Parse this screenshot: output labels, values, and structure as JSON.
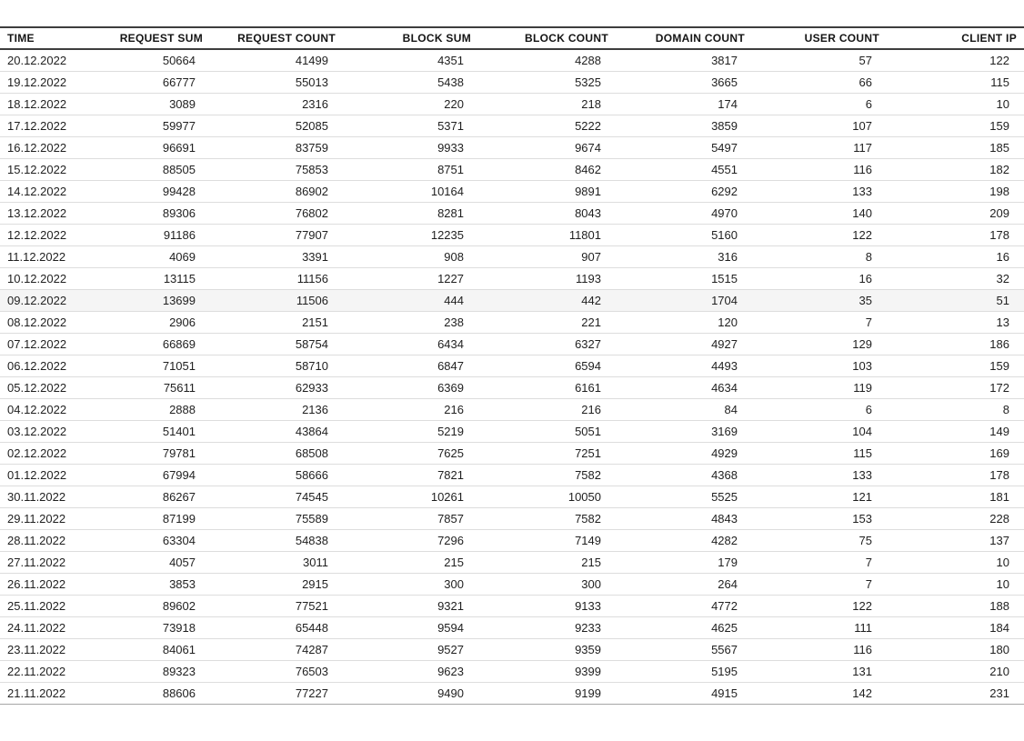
{
  "table": {
    "columns": [
      {
        "id": "time",
        "label": "TIME"
      },
      {
        "id": "request-sum",
        "label": "REQUEST SUM"
      },
      {
        "id": "request-count",
        "label": "REQUEST COUNT"
      },
      {
        "id": "block-sum",
        "label": "BLOCK SUM"
      },
      {
        "id": "block-count",
        "label": "BLOCK COUNT"
      },
      {
        "id": "domain-count",
        "label": "DOMAIN COUNT"
      },
      {
        "id": "user-count",
        "label": "USER COUNT"
      },
      {
        "id": "client-ip",
        "label": "CLIENT IP"
      }
    ],
    "rows": [
      [
        "20.12.2022",
        "50664",
        "41499",
        "4351",
        "4288",
        "3817",
        "57",
        "122"
      ],
      [
        "19.12.2022",
        "66777",
        "55013",
        "5438",
        "5325",
        "3665",
        "66",
        "115"
      ],
      [
        "18.12.2022",
        "3089",
        "2316",
        "220",
        "218",
        "174",
        "6",
        "10"
      ],
      [
        "17.12.2022",
        "59977",
        "52085",
        "5371",
        "5222",
        "3859",
        "107",
        "159"
      ],
      [
        "16.12.2022",
        "96691",
        "83759",
        "9933",
        "9674",
        "5497",
        "117",
        "185"
      ],
      [
        "15.12.2022",
        "88505",
        "75853",
        "8751",
        "8462",
        "4551",
        "116",
        "182"
      ],
      [
        "14.12.2022",
        "99428",
        "86902",
        "10164",
        "9891",
        "6292",
        "133",
        "198"
      ],
      [
        "13.12.2022",
        "89306",
        "76802",
        "8281",
        "8043",
        "4970",
        "140",
        "209"
      ],
      [
        "12.12.2022",
        "91186",
        "77907",
        "12235",
        "11801",
        "5160",
        "122",
        "178"
      ],
      [
        "11.12.2022",
        "4069",
        "3391",
        "908",
        "907",
        "316",
        "8",
        "16"
      ],
      [
        "10.12.2022",
        "13115",
        "11156",
        "1227",
        "1193",
        "1515",
        "16",
        "32"
      ],
      [
        "09.12.2022",
        "13699",
        "11506",
        "444",
        "442",
        "1704",
        "35",
        "51"
      ],
      [
        "08.12.2022",
        "2906",
        "2151",
        "238",
        "221",
        "120",
        "7",
        "13"
      ],
      [
        "07.12.2022",
        "66869",
        "58754",
        "6434",
        "6327",
        "4927",
        "129",
        "186"
      ],
      [
        "06.12.2022",
        "71051",
        "58710",
        "6847",
        "6594",
        "4493",
        "103",
        "159"
      ],
      [
        "05.12.2022",
        "75611",
        "62933",
        "6369",
        "6161",
        "4634",
        "119",
        "172"
      ],
      [
        "04.12.2022",
        "2888",
        "2136",
        "216",
        "216",
        "84",
        "6",
        "8"
      ],
      [
        "03.12.2022",
        "51401",
        "43864",
        "5219",
        "5051",
        "3169",
        "104",
        "149"
      ],
      [
        "02.12.2022",
        "79781",
        "68508",
        "7625",
        "7251",
        "4929",
        "115",
        "169"
      ],
      [
        "01.12.2022",
        "67994",
        "58666",
        "7821",
        "7582",
        "4368",
        "133",
        "178"
      ],
      [
        "30.11.2022",
        "86267",
        "74545",
        "10261",
        "10050",
        "5525",
        "121",
        "181"
      ],
      [
        "29.11.2022",
        "87199",
        "75589",
        "7857",
        "7582",
        "4843",
        "153",
        "228"
      ],
      [
        "28.11.2022",
        "63304",
        "54838",
        "7296",
        "7149",
        "4282",
        "75",
        "137"
      ],
      [
        "27.11.2022",
        "4057",
        "3011",
        "215",
        "215",
        "179",
        "7",
        "10"
      ],
      [
        "26.11.2022",
        "3853",
        "2915",
        "300",
        "300",
        "264",
        "7",
        "10"
      ],
      [
        "25.11.2022",
        "89602",
        "77521",
        "9321",
        "9133",
        "4772",
        "122",
        "188"
      ],
      [
        "24.11.2022",
        "73918",
        "65448",
        "9594",
        "9233",
        "4625",
        "111",
        "184"
      ],
      [
        "23.11.2022",
        "84061",
        "74287",
        "9527",
        "9359",
        "5567",
        "116",
        "180"
      ],
      [
        "22.11.2022",
        "89323",
        "76503",
        "9623",
        "9399",
        "5195",
        "131",
        "210"
      ],
      [
        "21.11.2022",
        "88606",
        "77227",
        "9490",
        "9199",
        "4915",
        "142",
        "231"
      ]
    ],
    "highlighted_row_index": 11,
    "highlighted_row_time": "09.12.2022"
  },
  "colors": {
    "header_border": "#3d3d3d",
    "row_separator": "#dddddd",
    "table_bottom_border": "#a6a6a6",
    "highlight_row_bg": "#f5f5f5",
    "text": "#1f1f1f"
  }
}
